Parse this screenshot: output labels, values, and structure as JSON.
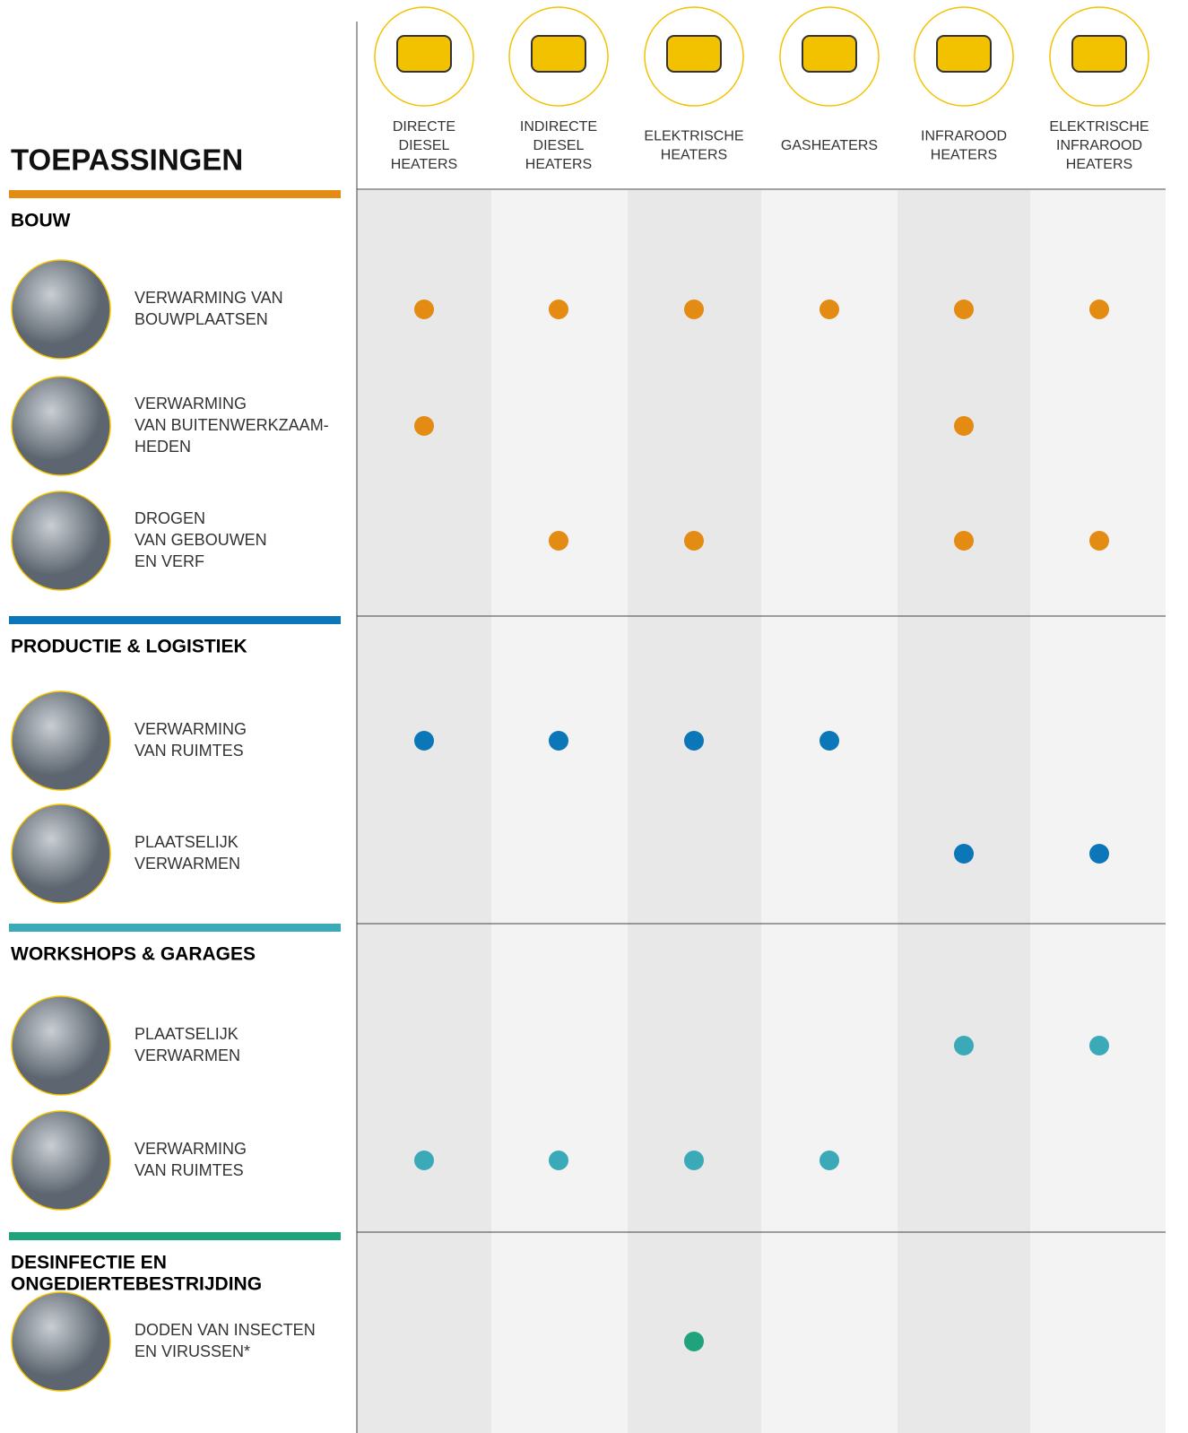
{
  "header": {
    "title": "TOEPASSINGEN",
    "columns": [
      [
        "DIRECTE",
        "DIESEL",
        "HEATERS"
      ],
      [
        "INDIRECTE",
        "DIESEL",
        "HEATERS"
      ],
      [
        "ELEKTRISCHE",
        "HEATERS"
      ],
      [
        "GASHEATERS"
      ],
      [
        "INFRAROOD",
        "HEATERS"
      ],
      [
        "ELEKTRISCHE",
        "INFRAROOD",
        "HEATERS"
      ]
    ]
  },
  "sections": [
    {
      "title": [
        "BOUW"
      ],
      "color": "#e38b12",
      "rows": [
        {
          "label": [
            "VERWARMING VAN",
            "BOUWPLAATSEN"
          ],
          "cells": [
            true,
            true,
            true,
            true,
            true,
            true
          ]
        },
        {
          "label": [
            "VERWARMING",
            "VAN BUITENWERKZAAM-",
            "HEDEN"
          ],
          "cells": [
            true,
            false,
            false,
            false,
            true,
            false
          ]
        },
        {
          "label": [
            "DROGEN",
            "VAN GEBOUWEN",
            "EN VERF"
          ],
          "cells": [
            false,
            true,
            true,
            false,
            true,
            true
          ]
        }
      ]
    },
    {
      "title": [
        "PRODUCTIE & LOGISTIEK"
      ],
      "color": "#0b76b8",
      "rows": [
        {
          "label": [
            "VERWARMING",
            "VAN RUIMTES"
          ],
          "cells": [
            true,
            true,
            true,
            true,
            false,
            false
          ]
        },
        {
          "label": [
            "PLAATSELIJK",
            "VERWARMEN"
          ],
          "cells": [
            false,
            false,
            false,
            false,
            true,
            true
          ]
        }
      ]
    },
    {
      "title": [
        "WORKSHOPS & GARAGES"
      ],
      "color": "#3aaab8",
      "rows": [
        {
          "label": [
            "PLAATSELIJK",
            "VERWARMEN"
          ],
          "cells": [
            false,
            false,
            false,
            false,
            true,
            true
          ]
        },
        {
          "label": [
            "VERWARMING",
            "VAN RUIMTES"
          ],
          "cells": [
            true,
            true,
            true,
            true,
            false,
            false
          ]
        }
      ]
    },
    {
      "title": [
        "DESINFECTIE EN",
        "ONGEDIERTEBESTRIJDING"
      ],
      "color": "#1fa37c",
      "rows": [
        {
          "label": [
            "DODEN VAN INSECTEN",
            "EN VIRUSSEN*"
          ],
          "cells": [
            false,
            false,
            true,
            false,
            false,
            false
          ]
        }
      ]
    }
  ]
}
